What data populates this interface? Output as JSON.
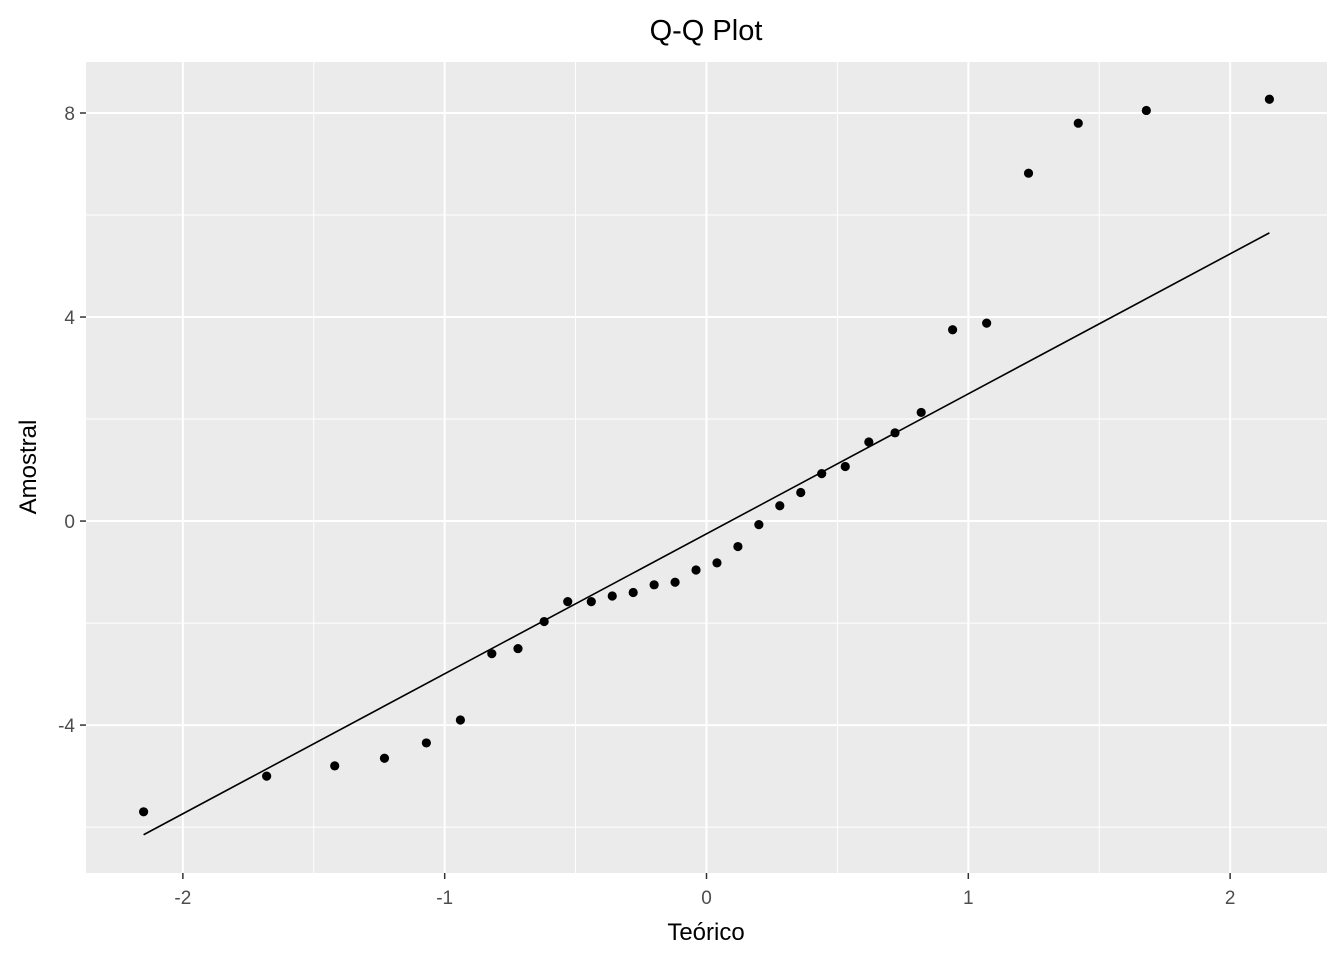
{
  "chart_data": {
    "type": "scatter",
    "title": "Q-Q Plot",
    "xlabel": "Teórico",
    "ylabel": "Amostral",
    "xlim": [
      -2.37,
      2.37
    ],
    "ylim": [
      -6.9,
      9.0
    ],
    "x_ticks": [
      -2,
      -1,
      0,
      1,
      2
    ],
    "x_tick_labels": [
      "-2",
      "-1",
      "0",
      "1",
      "2"
    ],
    "y_ticks": [
      -4,
      0,
      4,
      8
    ],
    "y_tick_labels": [
      "-4",
      "0",
      "4",
      "8"
    ],
    "grid": true,
    "legend": "none",
    "colors": {
      "panel": "#ebebeb",
      "grid": "#ffffff",
      "points": "#000000",
      "line": "#000000"
    },
    "points": [
      {
        "x": -2.15,
        "y": -5.7
      },
      {
        "x": -1.68,
        "y": -5.0
      },
      {
        "x": -1.42,
        "y": -4.8
      },
      {
        "x": -1.23,
        "y": -4.65
      },
      {
        "x": -1.07,
        "y": -4.35
      },
      {
        "x": -0.94,
        "y": -3.9
      },
      {
        "x": -0.82,
        "y": -2.6
      },
      {
        "x": -0.72,
        "y": -2.5
      },
      {
        "x": -0.62,
        "y": -1.97
      },
      {
        "x": -0.53,
        "y": -1.58
      },
      {
        "x": -0.44,
        "y": -1.58
      },
      {
        "x": -0.36,
        "y": -1.47
      },
      {
        "x": -0.28,
        "y": -1.4
      },
      {
        "x": -0.2,
        "y": -1.25
      },
      {
        "x": -0.12,
        "y": -1.2
      },
      {
        "x": -0.04,
        "y": -0.96
      },
      {
        "x": 0.04,
        "y": -0.82
      },
      {
        "x": 0.12,
        "y": -0.5
      },
      {
        "x": 0.2,
        "y": -0.07
      },
      {
        "x": 0.28,
        "y": 0.3
      },
      {
        "x": 0.36,
        "y": 0.56
      },
      {
        "x": 0.44,
        "y": 0.93
      },
      {
        "x": 0.53,
        "y": 1.07
      },
      {
        "x": 0.62,
        "y": 1.55
      },
      {
        "x": 0.72,
        "y": 1.73
      },
      {
        "x": 0.82,
        "y": 2.13
      },
      {
        "x": 0.94,
        "y": 3.75
      },
      {
        "x": 1.07,
        "y": 3.88
      },
      {
        "x": 1.23,
        "y": 6.82
      },
      {
        "x": 1.42,
        "y": 7.8
      },
      {
        "x": 1.68,
        "y": 8.05
      },
      {
        "x": 2.15,
        "y": 8.27
      }
    ],
    "reference_line": {
      "x": [
        -2.15,
        2.15
      ],
      "y": [
        -6.15,
        5.65
      ]
    }
  }
}
